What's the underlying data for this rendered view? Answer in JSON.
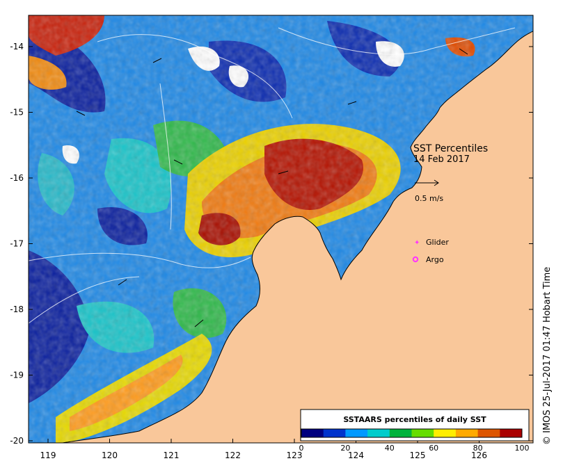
{
  "map": {
    "title_line1": "SST Percentiles",
    "title_line2": "14 Feb 2017",
    "velocity_scale_label": "0.5 m/s",
    "legend": {
      "glider_label": "Glider",
      "argo_label": "Argo",
      "glider_color": "#ff33ff",
      "argo_color": "#ff33ff"
    },
    "colorbar": {
      "title": "SSTAARS percentiles of daily SST",
      "tick_labels": [
        "0",
        "20",
        "40",
        "60",
        "80",
        "100"
      ],
      "colors": [
        "#00007f",
        "#0033cc",
        "#0099ff",
        "#00cccc",
        "#00b33c",
        "#66dd00",
        "#ffee00",
        "#ffaa00",
        "#dd5500",
        "#aa0000"
      ]
    },
    "credit": "© IMOS 25-Jul-2017 01:47 Hobart Time",
    "land_color": "#f9c79a",
    "axes": {
      "x_ticks": [
        "119",
        "120",
        "121",
        "122",
        "123",
        "124",
        "125",
        "126"
      ],
      "y_ticks": [
        "-14",
        "-15",
        "-16",
        "-17",
        "-18",
        "-19",
        "-20"
      ]
    }
  }
}
